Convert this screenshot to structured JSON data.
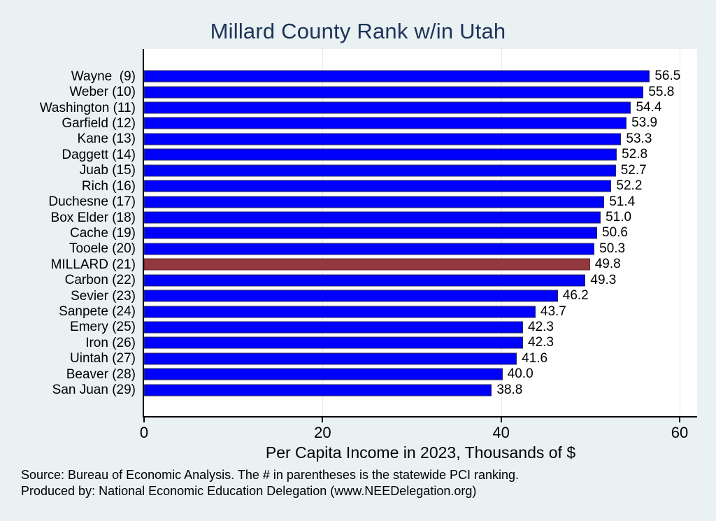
{
  "title": "Millard County Rank w/in Utah",
  "xlabel": "Per Capita Income in 2023, Thousands of $",
  "source_line1": "Source: Bureau of Economic Analysis. The # in parentheses is the statewide PCI ranking.",
  "source_line2": "Produced by: National Economic Education Delegation (www.NEEDelegation.org)",
  "colors": {
    "background": "#e9f1f3",
    "plot_background": "#ffffff",
    "title": "#1f3358",
    "bar": "#0000ff",
    "bar_outline": "#2a2a5e",
    "highlight_bar": "#93383f",
    "highlight_outline": "#6a272d",
    "axis": "#000000",
    "gridline": "#dfeaec",
    "text": "#000000"
  },
  "chart_data": {
    "type": "bar",
    "orientation": "horizontal",
    "title": "Millard County Rank w/in Utah",
    "xlabel": "Per Capita Income in 2023, Thousands of $",
    "ylabel": "",
    "xlim": [
      0,
      61.96
    ],
    "xticks": [
      0,
      20,
      40,
      60
    ],
    "grid": "vertical-light",
    "legend": "none",
    "highlight_category": "MILLARD (21)",
    "highlight_index": 12,
    "categories": [
      "Wayne  (9)",
      "Weber (10)",
      "Washington (11)",
      "Garfield (12)",
      "Kane (13)",
      "Daggett (14)",
      "Juab (15)",
      "Rich (16)",
      "Duchesne (17)",
      "Box Elder (18)",
      "Cache (19)",
      "Tooele (20)",
      "MILLARD (21)",
      "Carbon (22)",
      "Sevier (23)",
      "Sanpete (24)",
      "Emery (25)",
      "Iron (26)",
      "Uintah (27)",
      "Beaver (28)",
      "San Juan (29)"
    ],
    "values": [
      56.5,
      55.8,
      54.4,
      53.9,
      53.3,
      52.8,
      52.7,
      52.2,
      51.4,
      51.0,
      50.6,
      50.3,
      49.8,
      49.3,
      46.2,
      43.7,
      42.3,
      42.3,
      41.6,
      40.0,
      38.8
    ],
    "value_labels": [
      "56.5",
      "55.8",
      "54.4",
      "53.9",
      "53.3",
      "52.8",
      "52.7",
      "52.2",
      "51.4",
      "51.0",
      "50.6",
      "50.3",
      "49.8",
      "49.3",
      "46.2",
      "43.7",
      "42.3",
      "42.3",
      "41.6",
      "40.0",
      "38.8"
    ]
  }
}
